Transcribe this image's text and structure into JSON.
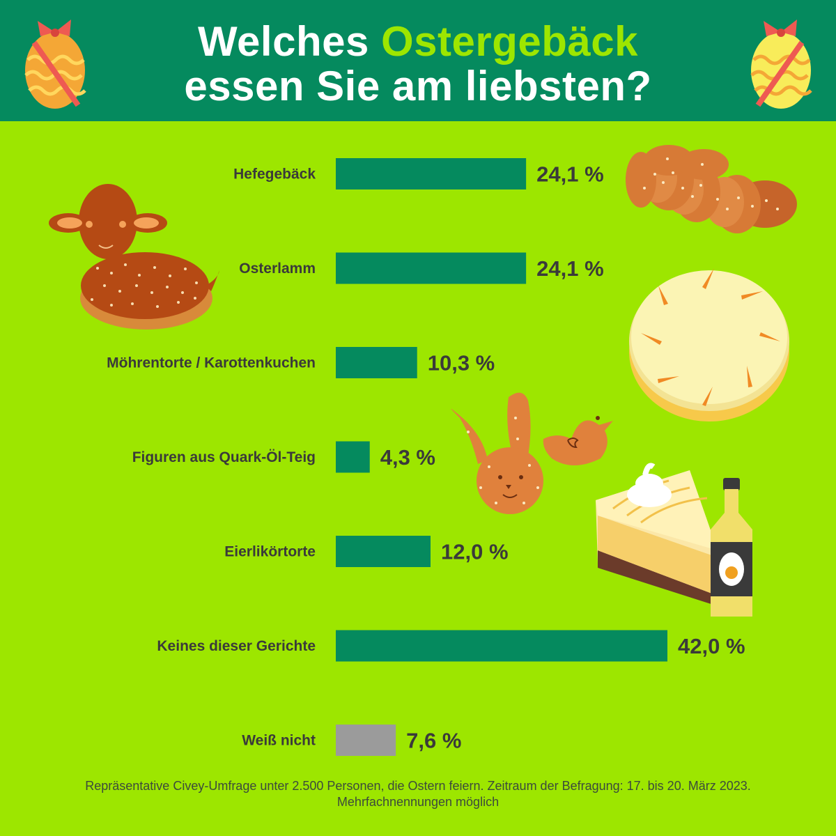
{
  "title": {
    "line1_plain": "Welches",
    "line1_accent": "Ostergebäck",
    "line2": "essen Sie am liebsten?"
  },
  "colors": {
    "header_bg": "#058a5e",
    "page_bg": "#9de600",
    "bar": "#058a5e",
    "bar_unknown": "#9b9b9b",
    "accent": "#9de600"
  },
  "chart_data": {
    "type": "bar",
    "orientation": "horizontal",
    "title": "Welches Ostergebäck essen Sie am liebsten?",
    "categories": [
      "Hefegebäck",
      "Osterlamm",
      "Möhrentorte / Karottenkuchen",
      "Figuren aus Quark-Öl-Teig",
      "Eierlikörtorte",
      "Keines dieser Gerichte",
      "Weiß nicht"
    ],
    "values": [
      24.1,
      24.1,
      10.3,
      4.3,
      12.0,
      42.0,
      7.6
    ],
    "value_labels": [
      "24,1 %",
      "24,1 %",
      "10,3 %",
      "4,3 %",
      "12,0 %",
      "42,0 %",
      "7,6 %"
    ],
    "bar_colors": [
      "#058a5e",
      "#058a5e",
      "#058a5e",
      "#058a5e",
      "#058a5e",
      "#058a5e",
      "#9b9b9b"
    ],
    "unit": "%",
    "xlim": [
      0,
      42.0
    ],
    "xlabel": "",
    "ylabel": "",
    "grid": false
  },
  "illustrations": [
    "easter-egg-icon",
    "braided-yeast-bread-icon",
    "easter-lamb-cake-icon",
    "carrot-cake-icon",
    "bunny-cookie-icon",
    "chick-cookie-icon",
    "eggnog-cake-icon",
    "eggnog-bottle-icon"
  ],
  "footnote": {
    "line1": "Repräsentative Civey-Umfrage unter 2.500 Personen, die Ostern feiern. Zeitraum der Befragung: 17. bis 20. März 2023.",
    "line2": "Mehrfachnennungen möglich"
  }
}
